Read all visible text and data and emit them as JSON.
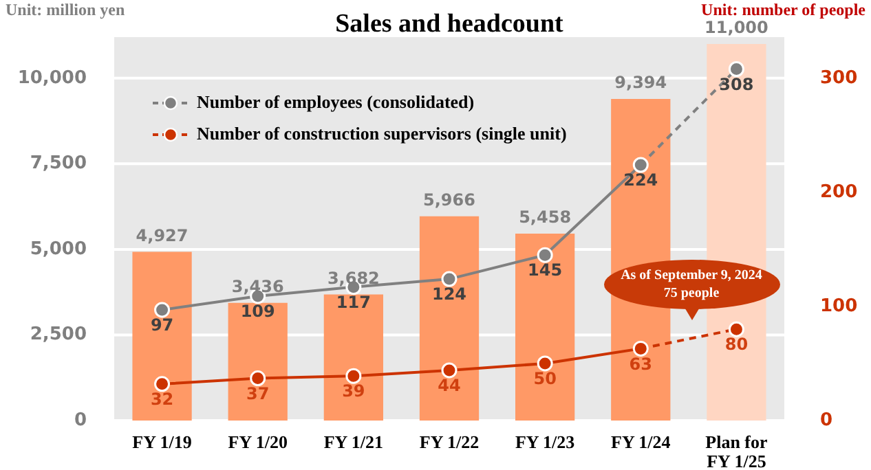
{
  "chart_data": {
    "type": "bar",
    "title": "Sales and headcount",
    "ylabel": "Unit: million yen",
    "y2label": "Unit: number of people",
    "categories": [
      "FY 1/19",
      "FY 1/20",
      "FY 1/21",
      "FY 1/22",
      "FY 1/23",
      "FY 1/24",
      "Plan for FY 1/25"
    ],
    "series": [
      {
        "values": [
          4927,
          3436,
          3682,
          5966,
          5458,
          9394,
          11000
        ],
        "value_labels": [
          "4,927",
          "3,436",
          "3,682",
          "5,966",
          "5,458",
          "9,394",
          "11,000"
        ],
        "colors": [
          "#ff9966",
          "#ff9966",
          "#ff9966",
          "#ff9966",
          "#ff9966",
          "#ff9966",
          "#ffd6c2"
        ]
      },
      {
        "type": "line",
        "name": "Number of employees (consolidated)",
        "color": "#808080",
        "axis": "y2",
        "values": [
          97,
          109,
          117,
          124,
          145,
          224,
          308
        ],
        "value_labels": [
          "97",
          "109",
          "117",
          "124",
          "145",
          "224",
          "308"
        ]
      },
      {
        "type": "line",
        "name": "Number of construction supervisors (single unit)",
        "color": "#cc3300",
        "axis": "y2",
        "values": [
          32,
          37,
          39,
          44,
          50,
          63,
          80
        ],
        "value_labels": [
          "32",
          "37",
          "39",
          "44",
          "50",
          "63",
          "80"
        ]
      }
    ],
    "ylim": [
      0,
      11200
    ],
    "yticks": [
      0,
      {
        "value": 2500,
        "label": "2,500"
      },
      {
        "value": 5000,
        "label": "5,000"
      },
      {
        "value": 7500,
        "label": "7,500"
      },
      {
        "value": 10000,
        "label": "10,000"
      }
    ],
    "y2lim": [
      0,
      336
    ],
    "y2ticks": [
      0,
      100,
      200,
      300
    ],
    "annotations": [
      "As of September 9, 2024 75 people"
    ],
    "grid": "y",
    "legend": "top left",
    "marker": "circle",
    "line_style": "solid"
  }
}
